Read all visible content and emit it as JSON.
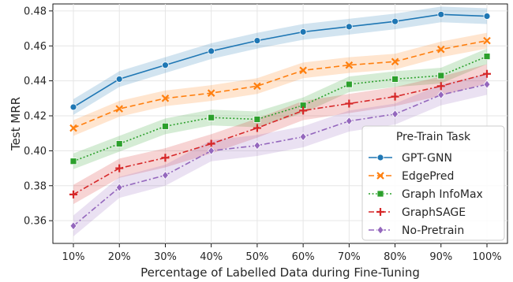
{
  "chart_data": {
    "type": "line",
    "xlabel": "Percentage of Labelled Data during Fine-Tuning",
    "ylabel": "Test MRR",
    "categories": [
      "10%",
      "20%",
      "30%",
      "40%",
      "50%",
      "60%",
      "70%",
      "80%",
      "90%",
      "100%"
    ],
    "ylim": [
      0.347,
      0.484
    ],
    "yticks": [
      0.36,
      0.38,
      0.4,
      0.42,
      0.44,
      0.46,
      0.48
    ],
    "ytick_labels": [
      "0.36",
      "0.38",
      "0.40",
      "0.42",
      "0.44",
      "0.46",
      "0.48"
    ],
    "grid": true,
    "legend": {
      "title": "Pre-Train Task",
      "placement": "lower-right"
    },
    "series": [
      {
        "name": "GPT-GNN",
        "color": "#1f77b4",
        "marker": "circle",
        "dash": "solid",
        "values": [
          0.425,
          0.441,
          0.449,
          0.457,
          0.463,
          0.468,
          0.471,
          0.474,
          0.478,
          0.477
        ],
        "band": 0.0045
      },
      {
        "name": "EdgePred",
        "color": "#ff7f0e",
        "marker": "x",
        "dash": "dashed",
        "values": [
          0.413,
          0.424,
          0.43,
          0.433,
          0.437,
          0.446,
          0.449,
          0.451,
          0.458,
          0.463
        ],
        "band": 0.0045
      },
      {
        "name": "Graph InfoMax",
        "color": "#2ca02c",
        "marker": "square",
        "dash": "dotted",
        "values": [
          0.394,
          0.404,
          0.414,
          0.419,
          0.418,
          0.426,
          0.438,
          0.441,
          0.443,
          0.454
        ],
        "band": 0.0045
      },
      {
        "name": "GraphSAGE",
        "color": "#d62728",
        "marker": "plus",
        "dash": "dashdot",
        "values": [
          0.375,
          0.39,
          0.396,
          0.404,
          0.413,
          0.423,
          0.427,
          0.431,
          0.437,
          0.444
        ],
        "band": 0.0055
      },
      {
        "name": "No-Pretrain",
        "color": "#9467bd",
        "marker": "diamond",
        "dash": "dashdot",
        "values": [
          0.357,
          0.379,
          0.386,
          0.4,
          0.403,
          0.408,
          0.417,
          0.421,
          0.432,
          0.438
        ],
        "band": 0.006
      }
    ]
  }
}
